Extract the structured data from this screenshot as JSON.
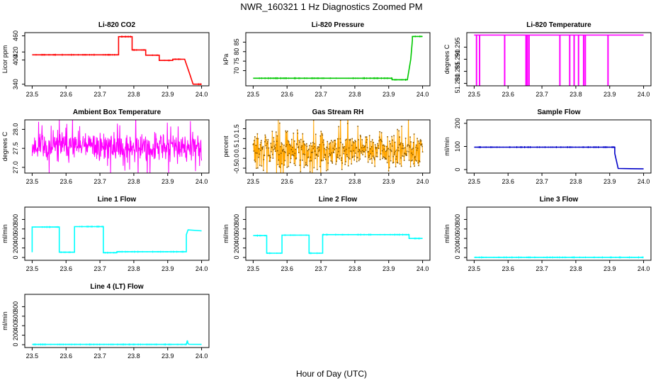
{
  "figure": {
    "title": "NWR_160321  1 Hz Diagnostics Zoomed PM",
    "xlabel": "Hour of Day (UTC)"
  },
  "chart_data": [
    {
      "type": "line",
      "title": "Li-820 CO2",
      "ylabel": "Licor ppm",
      "color": "#ff0000",
      "xlim": [
        23.5,
        24.0
      ],
      "ylim": [
        336,
        468
      ],
      "xticks": [
        23.5,
        23.6,
        23.7,
        23.8,
        23.9,
        24.0
      ],
      "yticks": [
        340,
        400,
        420,
        460
      ],
      "series": [
        {
          "name": "CO2",
          "style": "step",
          "x": [
            23.5,
            23.755,
            23.755,
            23.795,
            23.795,
            23.835,
            23.835,
            23.875,
            23.875,
            23.915,
            23.915,
            23.95,
            23.965,
            23.975,
            24.0
          ],
          "y": [
            413,
            413,
            458,
            458,
            425,
            425,
            412,
            412,
            399,
            399,
            402,
            402,
            365,
            340,
            340
          ]
        }
      ]
    },
    {
      "type": "line",
      "title": "Li-820 Pressure",
      "ylabel": "kPa",
      "color": "#00c800",
      "xlim": [
        23.5,
        24.0
      ],
      "ylim": [
        62,
        90
      ],
      "xticks": [
        23.5,
        23.6,
        23.7,
        23.8,
        23.9,
        24.0
      ],
      "yticks": [
        70,
        75,
        80,
        85
      ],
      "series": [
        {
          "name": "Pressure",
          "style": "step",
          "x": [
            23.5,
            23.91,
            23.91,
            23.955,
            23.965,
            23.97,
            23.97,
            24.0
          ],
          "y": [
            66,
            66,
            65.2,
            65.2,
            76,
            86,
            88,
            88
          ]
        }
      ]
    },
    {
      "type": "line",
      "title": "Li-820 Temperature",
      "ylabel": "degrees C",
      "color": "#ff00ff",
      "xlim": [
        23.5,
        24.0
      ],
      "ylim": [
        51.279,
        51.301
      ],
      "xticks": [
        23.5,
        23.6,
        23.7,
        23.8,
        23.9,
        24.0
      ],
      "yticks": [
        51.28,
        51.285,
        51.29,
        51.295
      ],
      "baseline": 51.3,
      "spikes": {
        "x": [
          23.507,
          23.516,
          23.59,
          23.653,
          23.657,
          23.662,
          23.753,
          23.782,
          23.795,
          23.808,
          23.823,
          23.828,
          23.895
        ],
        "y": [
          51.279,
          51.279,
          51.279,
          51.279,
          51.279,
          51.279,
          51.279,
          51.279,
          51.279,
          51.279,
          51.279,
          51.279,
          51.279
        ]
      }
    },
    {
      "type": "line",
      "title": "Ambient Box Temperature",
      "ylabel": "degrees C",
      "color": "#ff00ff",
      "xlim": [
        23.5,
        24.0
      ],
      "ylim": [
        26.85,
        28.25
      ],
      "xticks": [
        23.5,
        23.6,
        23.7,
        23.8,
        23.9,
        24.0
      ],
      "yticks": [
        27.0,
        27.5,
        28.0
      ],
      "noise": {
        "x0": 23.5,
        "x1": 24.0,
        "n": 500,
        "seed": 11,
        "levels": [
          [
            23.5,
            27.55
          ],
          [
            23.75,
            27.55
          ],
          [
            24.0,
            27.5
          ]
        ],
        "amp": 0.33
      }
    },
    {
      "type": "line",
      "title": "Gas Stream RH",
      "ylabel": "percent",
      "color": "#ffa500",
      "xlim": [
        23.5,
        24.0
      ],
      "ylim": [
        -0.75,
        1.95
      ],
      "xticks": [
        23.5,
        23.6,
        23.7,
        23.8,
        23.9,
        24.0
      ],
      "yticks": [
        -0.5,
        0.0,
        0.5,
        1.0,
        1.5
      ],
      "noise": {
        "x0": 23.5,
        "x1": 24.0,
        "n": 480,
        "seed": 29,
        "levels": [
          [
            23.5,
            0.4
          ],
          [
            24.0,
            0.4
          ]
        ],
        "amp": 0.75
      },
      "point_markers": true
    },
    {
      "type": "line",
      "title": "Sample Flow",
      "ylabel": "ml/min",
      "color": "#0000c8",
      "xlim": [
        23.5,
        24.0
      ],
      "ylim": [
        -15,
        215
      ],
      "xticks": [
        23.5,
        23.6,
        23.7,
        23.8,
        23.9,
        24.0
      ],
      "yticks": [
        0,
        100,
        200
      ],
      "series": [
        {
          "name": "Sample Flow",
          "style": "step",
          "x": [
            23.5,
            23.915,
            23.915,
            23.925,
            24.0
          ],
          "y": [
            97,
            97,
            70,
            5,
            3
          ]
        }
      ]
    },
    {
      "type": "line",
      "title": "Line 1 Flow",
      "ylabel": "ml/min",
      "color": "#00ffff",
      "xlim": [
        23.5,
        24.0
      ],
      "ylim": [
        -60,
        1060
      ],
      "xticks": [
        23.5,
        23.6,
        23.7,
        23.8,
        23.9,
        24.0
      ],
      "yticks": [
        0,
        200,
        400,
        600,
        800
      ],
      "series": [
        {
          "name": "Line 1",
          "style": "step",
          "x": [
            23.5,
            23.5,
            23.58,
            23.58,
            23.625,
            23.625,
            23.71,
            23.71,
            23.75,
            23.75,
            23.955,
            23.955,
            23.96,
            24.0
          ],
          "y": [
            110,
            640,
            640,
            110,
            110,
            650,
            650,
            100,
            100,
            120,
            120,
            480,
            580,
            560
          ]
        }
      ]
    },
    {
      "type": "line",
      "title": "Line 2 Flow",
      "ylabel": "ml/min",
      "color": "#00ffff",
      "xlim": [
        23.5,
        24.0
      ],
      "ylim": [
        -60,
        1060
      ],
      "xticks": [
        23.5,
        23.6,
        23.7,
        23.8,
        23.9,
        24.0
      ],
      "yticks": [
        0,
        200,
        400,
        600,
        800
      ],
      "series": [
        {
          "name": "Line 2",
          "style": "step",
          "x": [
            23.5,
            23.54,
            23.54,
            23.585,
            23.585,
            23.665,
            23.665,
            23.705,
            23.705,
            23.96,
            23.96,
            24.0
          ],
          "y": [
            460,
            460,
            90,
            90,
            470,
            470,
            90,
            90,
            480,
            480,
            400,
            400
          ]
        }
      ]
    },
    {
      "type": "line",
      "title": "Line 3 Flow",
      "ylabel": "ml/min",
      "color": "#00ffff",
      "xlim": [
        23.5,
        24.0
      ],
      "ylim": [
        -60,
        1060
      ],
      "xticks": [
        23.5,
        23.6,
        23.7,
        23.8,
        23.9,
        24.0
      ],
      "yticks": [
        0,
        200,
        400,
        600,
        800
      ],
      "series": [
        {
          "name": "Line 3",
          "style": "step",
          "x": [
            23.5,
            24.0
          ],
          "y": [
            2,
            2
          ]
        }
      ]
    },
    {
      "type": "line",
      "title": "Line 4 (LT) Flow",
      "ylabel": "ml/min",
      "color": "#00ffff",
      "xlim": [
        23.5,
        24.0
      ],
      "ylim": [
        -60,
        1060
      ],
      "xticks": [
        23.5,
        23.6,
        23.7,
        23.8,
        23.9,
        24.0
      ],
      "yticks": [
        0,
        200,
        400,
        600,
        800
      ],
      "series": [
        {
          "name": "Line 4",
          "style": "step",
          "x": [
            23.5,
            23.955,
            23.958,
            23.96,
            23.963,
            24.0
          ],
          "y": [
            5,
            5,
            90,
            20,
            8,
            5
          ]
        }
      ]
    }
  ]
}
